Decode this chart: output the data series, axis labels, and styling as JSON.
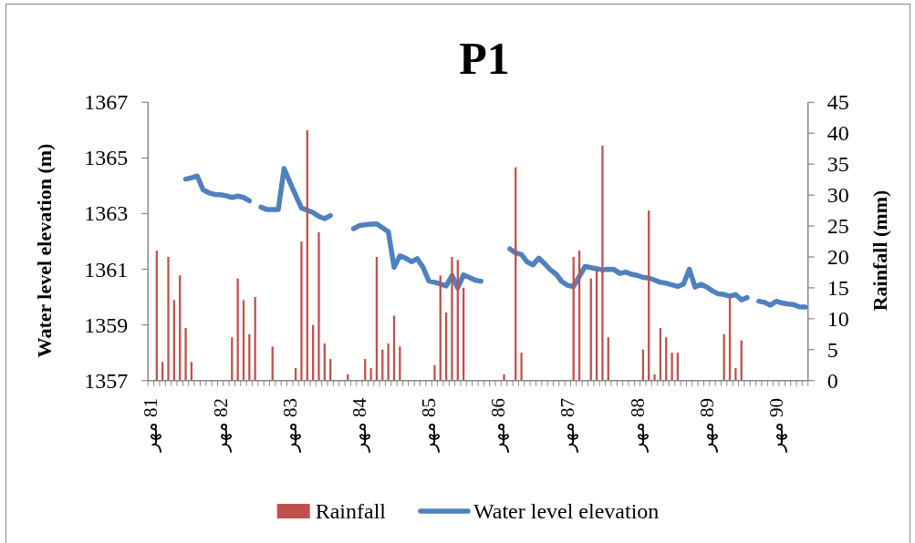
{
  "chart_data": {
    "type": "bar",
    "title": "P1",
    "ylabel": "Water level elevation (m)",
    "y2label": "Rainfall (mm)",
    "categories": [
      "81 مهر",
      null,
      null,
      null,
      null,
      null,
      null,
      null,
      null,
      null,
      null,
      null,
      "82 مهر",
      null,
      null,
      null,
      null,
      null,
      null,
      null,
      null,
      null,
      null,
      null,
      "83 مهر",
      null,
      null,
      null,
      null,
      null,
      null,
      null,
      null,
      null,
      null,
      null,
      "84 مهر",
      null,
      null,
      null,
      null,
      null,
      null,
      null,
      null,
      null,
      null,
      null,
      "85 مهر",
      null,
      null,
      null,
      null,
      null,
      null,
      null,
      null,
      null,
      null,
      null,
      "86 مهر",
      null,
      null,
      null,
      null,
      null,
      null,
      null,
      null,
      null,
      null,
      null,
      "87 مهر",
      null,
      null,
      null,
      null,
      null,
      null,
      null,
      null,
      null,
      null,
      null,
      "88 مهر",
      null,
      null,
      null,
      null,
      null,
      null,
      null,
      null,
      null,
      null,
      null,
      "89 مهر",
      null,
      null,
      null,
      null,
      null,
      null,
      null,
      null,
      null,
      null,
      null,
      "90 مهر",
      null,
      null,
      null,
      null,
      null
    ],
    "series": [
      {
        "name": "Rainfall",
        "axis": "y2",
        "color": "#c0504d",
        "values": [
          null,
          21,
          3,
          20,
          13,
          17,
          8.5,
          3,
          null,
          null,
          null,
          null,
          null,
          null,
          7,
          16.5,
          13,
          7.5,
          13.5,
          null,
          null,
          5.5,
          null,
          null,
          null,
          2,
          22.5,
          40.5,
          9,
          24,
          6,
          3.5,
          null,
          null,
          1,
          null,
          null,
          3.5,
          2,
          20,
          5,
          6,
          10.5,
          5.5,
          null,
          null,
          null,
          null,
          null,
          2.5,
          17,
          11,
          20,
          19.5,
          15,
          null,
          null,
          null,
          null,
          null,
          null,
          1,
          null,
          34.5,
          4.5,
          null,
          null,
          null,
          null,
          null,
          null,
          null,
          null,
          20,
          21,
          null,
          16.5,
          18,
          38,
          7,
          null,
          null,
          null,
          null,
          null,
          5,
          27.5,
          1,
          8.5,
          7,
          4.5,
          4.5,
          null,
          null,
          null,
          null,
          null,
          null,
          null,
          7.5,
          13.5,
          2,
          6.5,
          null,
          null,
          null,
          null,
          null,
          null,
          null,
          null,
          null,
          null,
          null
        ]
      },
      {
        "name": "Water level elevation",
        "type": "line",
        "color": "#4f81bd",
        "values": [
          null,
          null,
          null,
          null,
          null,
          null,
          1364.24,
          1364.29,
          1364.35,
          1363.86,
          1363.75,
          1363.69,
          1363.68,
          1363.64,
          1363.58,
          1363.63,
          1363.58,
          1363.46,
          null,
          1363.23,
          1363.15,
          1363.15,
          1363.15,
          1364.62,
          1364.13,
          1363.66,
          1363.2,
          1363.12,
          1363.04,
          1362.9,
          1362.82,
          1362.93,
          null,
          null,
          null,
          1362.46,
          1362.57,
          1362.6,
          1362.62,
          1362.63,
          1362.49,
          1362.35,
          1361.07,
          1361.48,
          1361.4,
          1361.27,
          1361.38,
          1361.07,
          1360.58,
          1360.53,
          1360.47,
          1360.4,
          1360.78,
          1360.33,
          1360.8,
          1360.71,
          1360.61,
          1360.57,
          null,
          null,
          null,
          null,
          1361.73,
          1361.59,
          1361.53,
          1361.26,
          1361.16,
          1361.4,
          1361.2,
          1360.98,
          1360.82,
          1360.55,
          1360.42,
          1360.38,
          1360.74,
          1361.1,
          1361.06,
          1361.02,
          1360.98,
          1361.0,
          1360.99,
          1360.85,
          1360.9,
          1360.82,
          1360.78,
          1360.71,
          1360.69,
          1360.61,
          1360.53,
          1360.5,
          1360.44,
          1360.38,
          1360.47,
          1361.0,
          1360.36,
          1360.46,
          1360.36,
          1360.22,
          1360.12,
          1360.09,
          1360.03,
          1360.09,
          1359.9,
          1359.98,
          null,
          1359.85,
          1359.81,
          1359.71,
          1359.85,
          1359.79,
          1359.75,
          1359.73,
          1359.65,
          1359.64
        ]
      }
    ],
    "ylim": [
      1357,
      1367
    ],
    "yticks": [
      1357,
      1359,
      1361,
      1363,
      1365,
      1367
    ],
    "y2lim": [
      0,
      45
    ],
    "y2ticks": [
      0,
      5,
      10,
      15,
      20,
      25,
      30,
      35,
      40,
      45
    ],
    "legend": "bottom"
  }
}
